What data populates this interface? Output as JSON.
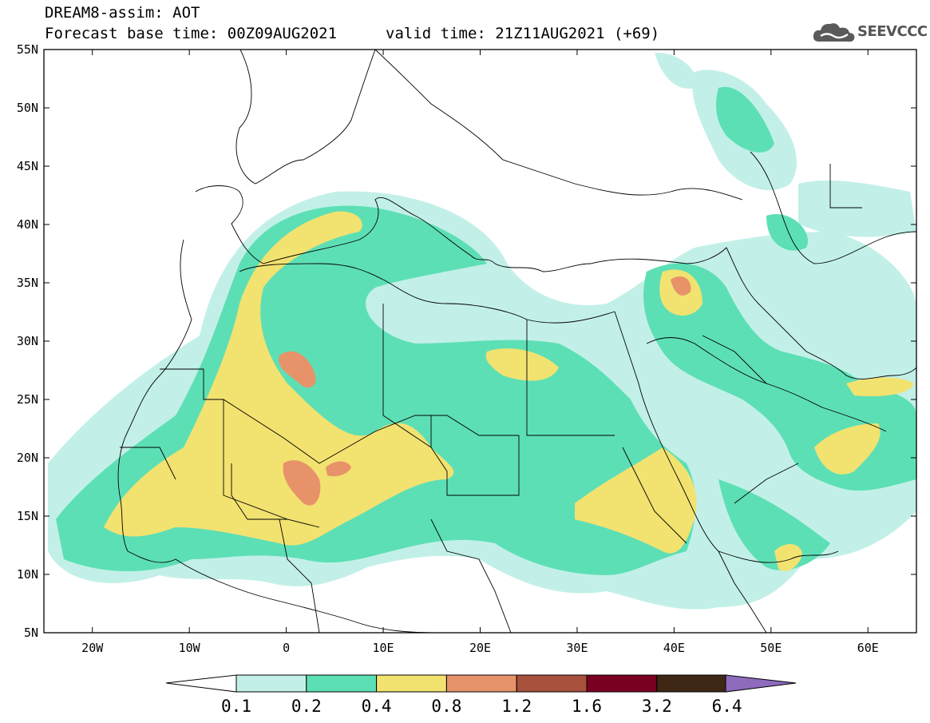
{
  "header": {
    "title_line1": "DREAM8-assim: AOT",
    "title_line2": "Forecast base time: 00Z09AUG2021",
    "valid_time": "valid time: 21Z11AUG2021 (+69)",
    "logo_text": "SEEVCCC"
  },
  "map": {
    "extent": {
      "lon_min": -25,
      "lon_max": 65,
      "lat_min": 5,
      "lat_max": 55
    },
    "lat_labels": [
      "55N",
      "50N",
      "45N",
      "40N",
      "35N",
      "30N",
      "25N",
      "20N",
      "15N",
      "10N",
      "5N"
    ],
    "lon_labels": [
      "20W",
      "10W",
      "0",
      "10E",
      "20E",
      "30E",
      "40E",
      "50E",
      "60E"
    ],
    "background_color": "#ffffff",
    "border_color": "#000000"
  },
  "colorbar": {
    "labels": [
      "0.1",
      "0.2",
      "0.4",
      "0.8",
      "1.2",
      "1.6",
      "3.2",
      "6.4"
    ],
    "colors": [
      "#ffffff",
      "#c2f0e8",
      "#5ddfb5",
      "#f2e270",
      "#e8926a",
      "#a8513c",
      "#7a0022",
      "#3f2716",
      "#8e6bbd"
    ],
    "unit": "AOT"
  }
}
